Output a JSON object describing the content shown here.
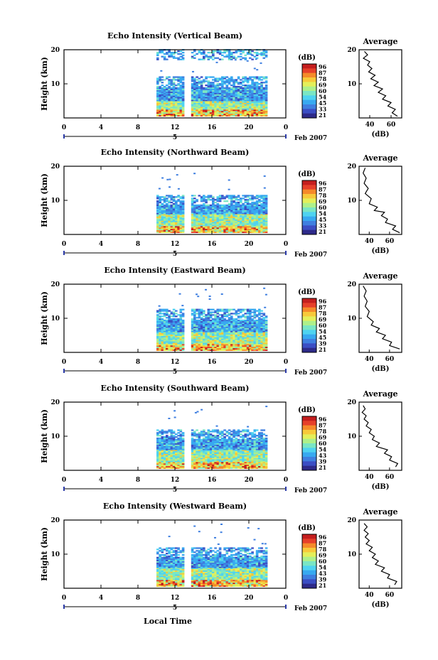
{
  "figure": {
    "date_label": "Feb 2007",
    "xlabel_bottom": "Local Time",
    "colorbar_unit": "(dB)",
    "profile_title": "Average",
    "profile_xlabel": "(dB)",
    "date_marker": "5"
  },
  "chart_data": [
    {
      "type": "heatmap",
      "title": "Echo Intensity (Vertical Beam)",
      "ylabel": "Height (km)",
      "xlim": [
        0,
        24
      ],
      "xticks": [
        "0",
        "4",
        "8",
        "12",
        "16",
        "20",
        "0"
      ],
      "ylim": [
        0,
        20
      ],
      "yticks": [
        "10",
        "20"
      ],
      "data_time_range": [
        10,
        21.8
      ],
      "data_gap": [
        12.8,
        13.7
      ],
      "height_layers": [
        {
          "from": 0.5,
          "to": 2.5,
          "level": "high"
        },
        {
          "from": 2.5,
          "to": 5,
          "level": "medium"
        },
        {
          "from": 5,
          "to": 12,
          "level": "low"
        },
        {
          "from": 17,
          "to": 20,
          "level": "low"
        }
      ],
      "colorbar": {
        "ticks": [
          "96",
          "87",
          "78",
          "69",
          "60",
          "54",
          "45",
          "33",
          "21"
        ]
      },
      "profile": {
        "xticks": [
          "40",
          "60"
        ],
        "xlim": [
          30,
          70
        ],
        "ylim": [
          0,
          20
        ],
        "yticks": [
          "10",
          "20"
        ],
        "points": [
          [
            35,
            19.5
          ],
          [
            38,
            18.5
          ],
          [
            34,
            17.5
          ],
          [
            40,
            16.5
          ],
          [
            38,
            15.5
          ],
          [
            42,
            14.5
          ],
          [
            39,
            13.5
          ],
          [
            45,
            12.5
          ],
          [
            41,
            11.5
          ],
          [
            48,
            10.5
          ],
          [
            44,
            9.5
          ],
          [
            52,
            8.5
          ],
          [
            48,
            7.5
          ],
          [
            55,
            6.5
          ],
          [
            52,
            5.5
          ],
          [
            60,
            4.5
          ],
          [
            57,
            3.5
          ],
          [
            64,
            2.5
          ],
          [
            61,
            1.5
          ],
          [
            66,
            0.5
          ]
        ]
      }
    },
    {
      "type": "heatmap",
      "title": "Echo Intensity (Northward Beam)",
      "ylabel": "Height (km)",
      "xlim": [
        0,
        24
      ],
      "xticks": [
        "0",
        "4",
        "8",
        "12",
        "16",
        "20",
        "0"
      ],
      "ylim": [
        0,
        20
      ],
      "yticks": [
        "10",
        "20"
      ],
      "data_time_range": [
        10,
        21.8
      ],
      "data_gap": [
        12.8,
        13.7
      ],
      "height_layers": [
        {
          "from": 0.5,
          "to": 2.5,
          "level": "high"
        },
        {
          "from": 2.5,
          "to": 6,
          "level": "medium"
        },
        {
          "from": 6,
          "to": 11.5,
          "level": "low"
        }
      ],
      "colorbar": {
        "ticks": [
          "96",
          "87",
          "78",
          "69",
          "60",
          "54",
          "45",
          "33",
          "21"
        ]
      },
      "profile": {
        "xticks": [
          "40",
          "60"
        ],
        "xlim": [
          30,
          72
        ],
        "ylim": [
          0,
          20
        ],
        "yticks": [
          "10",
          "20"
        ],
        "points": [
          [
            36,
            19.5
          ],
          [
            34,
            18
          ],
          [
            37,
            16.5
          ],
          [
            35,
            15
          ],
          [
            39,
            13.5
          ],
          [
            36,
            12
          ],
          [
            42,
            10.5
          ],
          [
            40,
            9
          ],
          [
            48,
            8
          ],
          [
            45,
            7
          ],
          [
            55,
            6.5
          ],
          [
            52,
            5.5
          ],
          [
            58,
            4.5
          ],
          [
            56,
            3.5
          ],
          [
            66,
            2.5
          ],
          [
            63,
            1.5
          ],
          [
            70,
            0.5
          ]
        ]
      }
    },
    {
      "type": "heatmap",
      "title": "Echo Intensity (Eastward Beam)",
      "ylabel": "Height (km)",
      "xlim": [
        0,
        24
      ],
      "xticks": [
        "0",
        "4",
        "8",
        "12",
        "16",
        "20",
        "0"
      ],
      "ylim": [
        0,
        20
      ],
      "yticks": [
        "10",
        "20"
      ],
      "data_time_range": [
        10,
        21.8
      ],
      "data_gap": [
        12.8,
        13.7
      ],
      "height_layers": [
        {
          "from": 0.5,
          "to": 2.5,
          "level": "high"
        },
        {
          "from": 2.5,
          "to": 6,
          "level": "medium"
        },
        {
          "from": 6,
          "to": 12.5,
          "level": "low"
        }
      ],
      "colorbar": {
        "ticks": [
          "96",
          "87",
          "78",
          "69",
          "60",
          "54",
          "45",
          "39",
          "21"
        ]
      },
      "profile": {
        "xticks": [
          "40",
          "60"
        ],
        "xlim": [
          30,
          72
        ],
        "ylim": [
          0,
          20
        ],
        "yticks": [
          "10",
          "20"
        ],
        "points": [
          [
            34,
            19.5
          ],
          [
            37,
            18
          ],
          [
            35,
            16.5
          ],
          [
            38,
            15
          ],
          [
            36,
            13.5
          ],
          [
            40,
            12
          ],
          [
            38,
            10.5
          ],
          [
            44,
            9
          ],
          [
            42,
            8
          ],
          [
            50,
            7
          ],
          [
            47,
            6
          ],
          [
            56,
            5
          ],
          [
            53,
            4
          ],
          [
            62,
            3
          ],
          [
            60,
            2
          ],
          [
            70,
            1
          ]
        ]
      }
    },
    {
      "type": "heatmap",
      "title": "Echo Intensity (Southward Beam)",
      "ylabel": "Height (km)",
      "xlim": [
        0,
        24
      ],
      "xticks": [
        "0",
        "4",
        "8",
        "12",
        "16",
        "20",
        "0"
      ],
      "ylim": [
        0,
        20
      ],
      "yticks": [
        "10",
        "20"
      ],
      "data_time_range": [
        10,
        21.8
      ],
      "data_gap": [
        12.8,
        13.7
      ],
      "height_layers": [
        {
          "from": 0.5,
          "to": 2.5,
          "level": "high"
        },
        {
          "from": 2.5,
          "to": 6,
          "level": "medium"
        },
        {
          "from": 6,
          "to": 12,
          "level": "low"
        }
      ],
      "colorbar": {
        "ticks": [
          "96",
          "87",
          "78",
          "69",
          "60",
          "54",
          "43",
          "39",
          "21"
        ]
      },
      "profile": {
        "xticks": [
          "40",
          "60"
        ],
        "xlim": [
          30,
          72
        ],
        "ylim": [
          0,
          20
        ],
        "yticks": [
          "10",
          "20"
        ],
        "points": [
          [
            34,
            19
          ],
          [
            36,
            18
          ],
          [
            33,
            17
          ],
          [
            37,
            16
          ],
          [
            35,
            15
          ],
          [
            39,
            14
          ],
          [
            37,
            13
          ],
          [
            42,
            12
          ],
          [
            40,
            11
          ],
          [
            45,
            10
          ],
          [
            43,
            9
          ],
          [
            50,
            8
          ],
          [
            47,
            7
          ],
          [
            58,
            6
          ],
          [
            55,
            5
          ],
          [
            62,
            4
          ],
          [
            60,
            3
          ],
          [
            68,
            2
          ],
          [
            66,
            1
          ]
        ]
      }
    },
    {
      "type": "heatmap",
      "title": "Echo Intensity (Westward Beam)",
      "ylabel": "Height (km)",
      "xlim": [
        0,
        24
      ],
      "xticks": [
        "0",
        "4",
        "8",
        "12",
        "16",
        "20",
        "0"
      ],
      "ylim": [
        0,
        20
      ],
      "yticks": [
        "10",
        "20"
      ],
      "data_time_range": [
        10,
        21.8
      ],
      "data_gap": [
        12.8,
        13.7
      ],
      "height_layers": [
        {
          "from": 0.5,
          "to": 2.5,
          "level": "high"
        },
        {
          "from": 2.5,
          "to": 6,
          "level": "medium"
        },
        {
          "from": 6,
          "to": 12,
          "level": "low"
        }
      ],
      "colorbar": {
        "ticks": [
          "96",
          "87",
          "78",
          "69",
          "60",
          "54",
          "43",
          "39",
          "21"
        ]
      },
      "profile": {
        "xticks": [
          "40",
          "60"
        ],
        "xlim": [
          30,
          72
        ],
        "ylim": [
          0,
          20
        ],
        "yticks": [
          "10",
          "20"
        ],
        "points": [
          [
            35,
            19
          ],
          [
            38,
            18
          ],
          [
            35,
            17
          ],
          [
            39,
            16
          ],
          [
            36,
            15
          ],
          [
            40,
            14
          ],
          [
            37,
            13
          ],
          [
            43,
            12
          ],
          [
            40,
            11
          ],
          [
            46,
            10
          ],
          [
            43,
            9
          ],
          [
            49,
            8
          ],
          [
            46,
            7
          ],
          [
            55,
            6
          ],
          [
            52,
            5
          ],
          [
            60,
            4
          ],
          [
            58,
            3
          ],
          [
            67,
            2
          ],
          [
            65,
            1
          ]
        ]
      }
    }
  ]
}
